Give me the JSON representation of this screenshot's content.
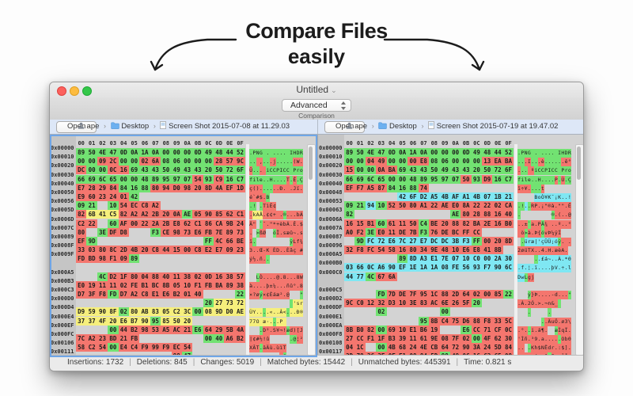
{
  "hero": {
    "line1": "Compare Files",
    "line2": "easily"
  },
  "window_chrome": {
    "title": "Untitled",
    "title_chevron": "⌄"
  },
  "toolbar": {
    "mode": "Advanced",
    "caption": "Comparison"
  },
  "status_bar": {
    "separator": "|",
    "items": [
      "Insertions: 1732",
      "Deletions: 845",
      "Changes: 5019",
      "Matched bytes: 15442",
      "Unmatched bytes: 445391",
      "Time: 0.821 s"
    ]
  },
  "column_header": [
    "00",
    "01",
    "02",
    "03",
    "04",
    "05",
    "06",
    "07",
    "08",
    "09",
    "0A",
    "0B",
    "0C",
    "0D",
    "0E",
    "0F"
  ],
  "diff_colors": {
    "match_green": "#72e272",
    "changed_red": "#f4766e",
    "changed_yellow": "#f6ef7c",
    "inserted_cyan": "#7fe7f3"
  },
  "panes": [
    {
      "side": "left",
      "open_label": "Open",
      "path": {
        "user": "ape",
        "folder": "Desktop",
        "file": "Screen Shot 2015-07-08 at 11.29.03"
      },
      "rows": [
        {
          "a": "0x00000",
          "h": "89 50 4E 47 0D 0A 1A 0A 00 00 00 0D 49 48 44 52",
          "c": "gggggggggggggggg",
          "t": ".PNG . .... IHDR"
        },
        {
          "a": "0x00010",
          "h": "00 00 09 2C 00 00 02 6A 08 06 00 00 00 28 57 9C",
          "c": "ggrrggrrgggggrrr",
          "t": ".. ,...j.....(W."
        },
        {
          "a": "0x00020",
          "h": "DC 00 00 0C 16 69 43 43 50 49 43 43 20 50 72 6F",
          "c": "rggrrggggggggggg",
          "t": "Ü... iCCPICC Pro"
        },
        {
          "a": "0x00030",
          "h": "66 69 6C 65 00 00 48 89 95 97 07 54 93 C9 16 C7",
          "c": "gggggggggggrgrgg",
          "t": "file..H....T.É.Ç"
        },
        {
          "a": "0x00040",
          "h": "E7 28 29 84 84 16 88 80 94 D0 98 20 8D 4A EF 1D",
          "c": "rrrrgggrrrrrrrrr",
          "t": "ç()......Ð. .Jï."
        },
        {
          "a": "0x00050",
          "h": "E9 60 23 24 01 42 -- -- -- -- -- -- -- -- -- --",
          "c": "rrrrrg..........",
          "t": "é`#$.B          "
        },
        {
          "a": "0x00056",
          "h": "09 21 -- 10 54 EC C8 A2 -- -- -- -- -- -- -- --",
          "c": "gg.grrrr........",
          "t": ".! .TìÈ¢        "
        },
        {
          "a": "0x0005D",
          "h": "82 6B 41 C5 82 A2 A2 2B 20 0A AE 05 90 85 62 C1",
          "c": "ryyyrrrrrrgrrrrr",
          "t": ".kAÅ.¢¢+ .®...bÁ"
        },
        {
          "a": "0x0006D",
          "h": "C2 22 -- 60 AF 00 22 2A 2B E8 62 C1 86 CA 9B 24",
          "c": "rr.grrrrrrrrrrrr",
          "t": "Â\" `¯.\"*+èbÁ.Ê.$"
        },
        {
          "a": "0x0007C",
          "h": "80 -- 3E DF D8 -- -- F3 CE 98 73 E6 FB 7E 89 73",
          "c": "r.grr..grrrrrrrr",
          "t": ". >ßØ  óÎ.sæû~.s"
        },
        {
          "a": "0x00089",
          "h": "EF 9D -- -- -- -- -- -- -- -- -- -- FF 4C 66 BE",
          "c": "rg..........grrr",
          "t": "ï.          ÿLf¾"
        },
        {
          "a": "0x0008F",
          "h": "33 03 80 8C 2D 4B 20 C8 44 15 00 C8 E2 E7 09 23",
          "c": "rrrrrrrrrrrrrrrr",
          "t": "3..Œ-K ÈD..Èâç #"
        },
        {
          "a": "0x0009F",
          "h": "FD BD 98 F1 09 89 -- -- -- -- -- -- -- -- -- --",
          "c": "rrrrrg..........",
          "t": "ý½.ñ..          "
        },
        {
          "a": "",
          "h": "-- -- -- -- -- -- -- -- -- -- -- -- -- -- -- --",
          "c": "................",
          "t": "                "
        },
        {
          "a": "0x000A5",
          "h": "-- -- 4C D2 1F 80 04 88 40 11 38 02 0D 16 38 57",
          "c": "..grrrrrrrrrrrrr",
          "t": "  LÒ....@.8...8W"
        },
        {
          "a": "0x000B3",
          "h": "E0 19 11 11 02 FE B1 BC 8B 05 10 F1 FB BA 89 38",
          "c": "rrrrrrrrrrrrrrrr",
          "t": "à....þ±¼...ñû°.8"
        },
        {
          "a": "0x000C3",
          "h": "D7 3F F8 FD D7 A2 C8 E1 E6 B2 01 40 -- -- -- 22",
          "c": "rrrgrrrrrrrr...g",
          "t": "×?øý×¢Èáæ².@   \""
        },
        {
          "a": "0x000D0",
          "h": "-- -- -- -- -- -- -- -- -- -- -- -- 20 27 73 72",
          "c": "............gyyy",
          "t": "             'sr"
        },
        {
          "a": "0x000D4",
          "h": "D9 59 90 8F 02 80 AB 83 05 C2 3C 00 08 9D D0 AE",
          "c": "yyyygyyyyyygyyyy",
          "t": "ÙY....«..Â<...Ð®"
        },
        {
          "a": "0x000E4",
          "h": "37 37 4F 20 E6 B7 90 95 85 50 20 -- -- -- -- --",
          "c": "yyyyyyygyyy.....",
          "t": "77O æ·...P      "
        },
        {
          "a": "0x000EF",
          "h": "-- -- -- 00 44 B2 98 53 A5 AC 21 E6 64 29 5B 4A",
          "c": "...grrrrrrrgrrrr",
          "t": "   .D².S¥¬!æd)[J"
        },
        {
          "a": "0x000FC",
          "h": "7C A2 23 BD 21 FB -- -- -- -- -- -- 00 40 A6 B2",
          "c": "rrrrrr......ggrr",
          "t": "|¢#½!û      .@¦²"
        },
        {
          "a": "0x00106",
          "h": "58 C2 54 00 E4 C4 F9 99 F9 EC 54 -- -- -- -- --",
          "c": "rrrgrrrrrrr.....",
          "t": "XÂT.äÄù.ùìT     "
        },
        {
          "a": "0x00111",
          "h": "-- -- -- -- -- -- -- -- -- 98 47 -- -- -- -- --",
          "c": ".........rg.....",
          "t": "         .G     "
        }
      ]
    },
    {
      "side": "right",
      "open_label": "Open",
      "path": {
        "user": "ape",
        "folder": "Desktop",
        "file": "Screen Shot 2015-07-19 at 19.47.02"
      },
      "rows": [
        {
          "a": "0x00000",
          "h": "89 50 4E 47 0D 0A 1A 0A 00 00 00 0D 49 48 44 52",
          "c": "gggggggggggggggg",
          "t": ".PNG . .... IHDR"
        },
        {
          "a": "0x00010",
          "h": "00 00 04 49 00 00 00 E8 08 06 00 00 00 13 EA BA",
          "c": "ggrrggrrgggggrrr",
          "t": "...I...è......ê°"
        },
        {
          "a": "0x00020",
          "h": "15 00 00 0A BA 69 43 43 50 49 43 43 20 50 72 6F",
          "c": "rggrrggggggggggg",
          "t": "... ºiCCPICC Pro"
        },
        {
          "a": "0x00030",
          "h": "66 69 6C 65 00 00 48 89 95 97 07 50 93 D9 16 C7",
          "c": "gggggggggggrgrgg",
          "t": "file..H....P.Ù.Ç"
        },
        {
          "a": "0x00040",
          "h": "EF F7 A5 87 84 16 88 74 -- -- -- -- -- -- -- --",
          "c": "rrrrgggr........",
          "t": "ï÷¥....t        "
        },
        {
          "a": "0x00048",
          "h": "-- -- -- -- -- 42 6F D2 A5 4B AF A1 4B 07 1B 21",
          "c": ".....ccccccccccc",
          "t": "     BoÒ¥K¯¡K..!"
        },
        {
          "a": "0x00053",
          "h": "09 21 94 10 52 50 80 A1 22 AE E0 8A 22 22 02 CA",
          "c": "ggcgrrrrrrrrrrrr",
          "t": ".!..RP.¡\"®à.\"\".Ê"
        },
        {
          "a": "0x00063",
          "h": "82 -- -- -- -- -- -- -- -- -- AE 80 28 88 16 40",
          "c": "g.........grrrrr",
          "t": ".         ®.(..@"
        },
        {
          "a": "0x0006A",
          "h": "16 15 B1 60 61 11 50 C4 BE 20 88 82 BA 2E 16 B0",
          "c": "rrrgrrrgrrrrrrrr",
          "t": "..±`a.PÄ¾ ..º..°"
        },
        {
          "a": "0x0007A",
          "h": "A0 F2 3E E0 11 DE 7B F3 76 DE BC FF CC -- -- --",
          "c": "rrgrrrrgrrrrr...",
          "t": " ò>à.Þ{óvÞ¼ÿÌ   "
        },
        {
          "a": "0x00087",
          "h": "-- 9D FC 72 E6 7C 27 E7 DC DC 3B F3 FF 00 20 8D",
          "c": ".gccccccccccgrrr",
          "t": " .üræ|'çÜÜ;óÿ. ."
        },
        {
          "a": "0x00096",
          "h": "32 F8 FC 54 58 16 80 34 9E 48 10 E6 E8 41 8B --",
          "c": "rrrrrrrrrrrrrrr.",
          "t": "2øüTX..4.H.æèA. "
        },
        {
          "a": "0x000A5",
          "h": "-- -- -- -- -- 89 8D A3 E1 7E 07 10 C0 00 2A 30",
          "c": ".....gcccccccccc",
          "t": "     ..£á~..À.*0"
        },
        {
          "a": "0x000B0",
          "h": "03 66 0C A6 90 EF 1E 1A 1A 08 FE 56 93 F7 90 6C",
          "c": "cccccccccccccccc",
          "t": ".f.¦.ï....þV.÷.l"
        },
        {
          "a": "0x000C0",
          "h": "44 77 4C 67 6A -- -- -- -- -- -- -- -- -- -- --",
          "c": "ccgrr...........",
          "t": "DwLgj           "
        },
        {
          "a": "",
          "h": "-- -- -- -- -- -- -- -- -- -- -- -- -- -- -- --",
          "c": "................",
          "t": "                "
        },
        {
          "a": "0x000C5",
          "h": "-- -- -- FD 7D DE 7F 95 1C 88 2D 64 02 00 85 22",
          "c": "...grrrrrrrrrrrg",
          "t": "   ý}Þ....-d...\""
        },
        {
          "a": "0x000D2",
          "h": "9C C0 12 32 D3 10 3E 83 AC 6E 26 5F 20 -- -- --",
          "c": "rrrrrrrrrrrrg...",
          "t": ".À.2Ó.>.¬n&_    "
        },
        {
          "a": "0x000DF",
          "h": "-- -- -- 02 -- -- -- -- -- 00 -- -- -- -- -- --",
          "c": "...g.....g......",
          "t": "   .     .      "
        },
        {
          "a": "0x000E1",
          "h": "-- -- -- -- -- -- -- 95 8B C4 75 D6 88 F8 33 5C",
          "c": ".......grrrrrrrr",
          "t": "       ..ÄuÖ.ø3\\"
        },
        {
          "a": "0x000EA",
          "h": "8B B0 82 00 69 10 E1 B6 19 -- -- E6 CC 71 CF 0C",
          "c": "rrrgrrrrr..grrrr",
          "t": ".°..i.á¶.  æÌqÏ."
        },
        {
          "a": "0x000F8",
          "h": "27 CC F1 1F B3 39 11 61 9E 08 7F 02 00 4F 62 30",
          "c": "rrrrrrrrrrrrgrrr",
          "t": "'Ìñ.³9.a.....Ob0"
        },
        {
          "a": "0x00108",
          "h": "04 1C -- 00 4B 68 24 4E CB 64 72 90 3A 24 5D 84",
          "c": "rr.grrrrrrrrrrrr",
          "t": ".. .Kh$NËdr.:$]."
        },
        {
          "a": "0x00117",
          "h": "2D 78 2C 2E 0F E1 08 84 5D 98 49 0C 16 C2 C5 08",
          "c": "rrrrrrrrrgrrrrrr",
          "t": "-x,..á..].I..ÂÅ."
        }
      ]
    }
  ]
}
